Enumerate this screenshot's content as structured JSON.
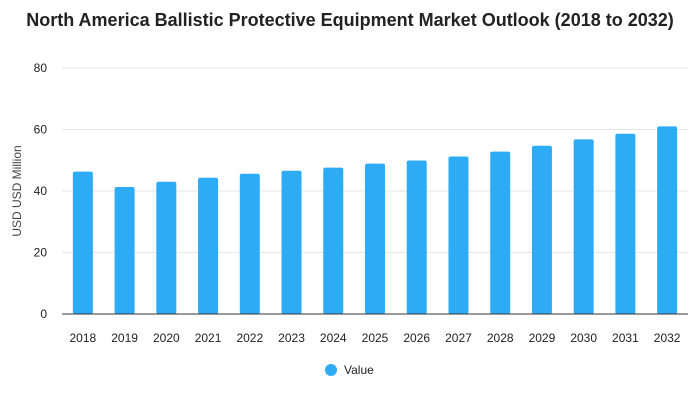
{
  "chart_data": {
    "type": "bar",
    "title": "North America Ballistic Protective Equipment Market Outlook (2018 to 2032)",
    "xlabel": "",
    "ylabel": "USD USD Million",
    "ylim": [
      0,
      80
    ],
    "yticks": [
      0,
      20,
      40,
      60,
      80
    ],
    "grid": true,
    "legend_position": "bottom",
    "categories": [
      "2018",
      "2019",
      "2020",
      "2021",
      "2022",
      "2023",
      "2024",
      "2025",
      "2026",
      "2027",
      "2028",
      "2029",
      "2030",
      "2031",
      "2032"
    ],
    "series": [
      {
        "name": "Value",
        "color": "#2eabf5",
        "values": [
          46.3,
          41.3,
          43.0,
          44.3,
          45.6,
          46.6,
          47.6,
          48.9,
          49.9,
          51.2,
          52.8,
          54.7,
          56.8,
          58.6,
          61.0
        ]
      }
    ]
  }
}
